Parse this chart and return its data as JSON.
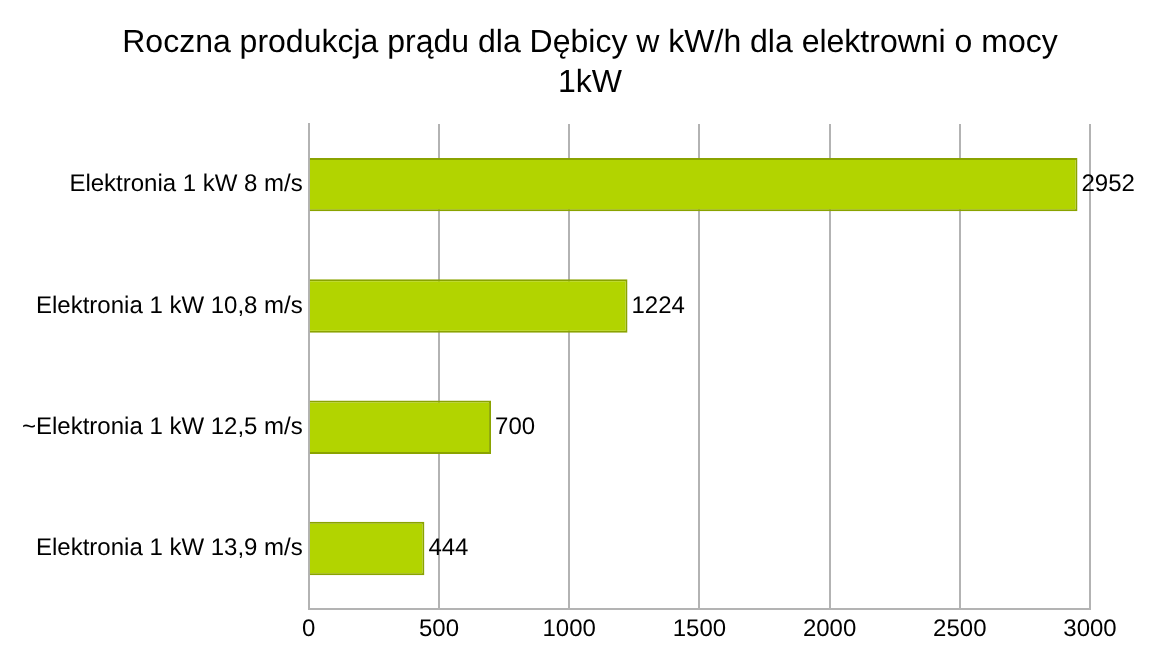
{
  "chart_data": {
    "type": "bar",
    "orientation": "horizontal",
    "title": "Roczna produkcja prądu dla Dębicy w kW/h dla elektrowni o mocy 1kW",
    "categories": [
      "Elektronia 1 kW 8 m/s",
      "Elektronia 1 kW 10,8 m/s",
      "~Elektronia 1 kW 12,5 m/s",
      "Elektronia 1 kW 13,9 m/s"
    ],
    "values": [
      2952,
      1224,
      700,
      444
    ],
    "color": "#b2d400",
    "xlim": [
      0,
      3000
    ],
    "xticks": [
      0,
      500,
      1000,
      1500,
      2000,
      2500,
      3000
    ],
    "grid": "x",
    "data_labels": true
  }
}
